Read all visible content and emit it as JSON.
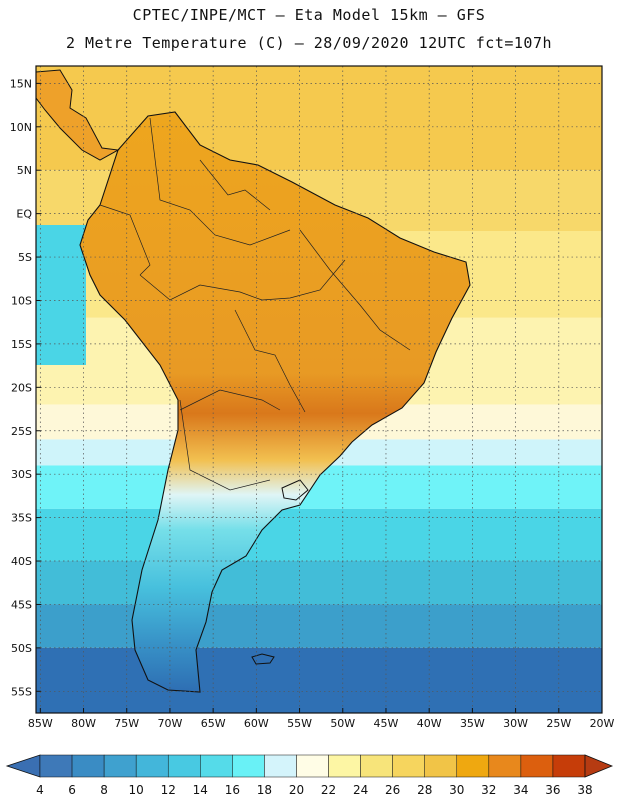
{
  "header": {
    "line1": "CPTEC/INPE/MCT –  Eta Model 15km – GFS",
    "line2": "2 Metre Temperature (C) – 28/09/2020 12UTC fct=107h"
  },
  "map": {
    "lat_range": [
      -57.5,
      17
    ],
    "lon_range": [
      -85.5,
      -20
    ],
    "lat_ticks": [
      "15N",
      "10N",
      "5N",
      "EQ",
      "5S",
      "10S",
      "15S",
      "20S",
      "25S",
      "30S",
      "35S",
      "40S",
      "45S",
      "50S",
      "55S"
    ],
    "lat_values": [
      15,
      10,
      5,
      0,
      -5,
      -10,
      -15,
      -20,
      -25,
      -30,
      -35,
      -40,
      -45,
      -50,
      -55
    ],
    "lon_ticks": [
      "85W",
      "80W",
      "75W",
      "70W",
      "65W",
      "60W",
      "55W",
      "50W",
      "45W",
      "40W",
      "35W",
      "30W",
      "25W",
      "20W"
    ],
    "lon_values": [
      -85,
      -80,
      -75,
      -70,
      -65,
      -60,
      -55,
      -50,
      -45,
      -40,
      -35,
      -30,
      -25,
      -20
    ],
    "gridlines": "dotted",
    "ocean_bands": [
      {
        "lat_from": 17,
        "lat_to": 5,
        "color": "#f5c94e",
        "value": 27
      },
      {
        "lat_from": 5,
        "lat_to": -2,
        "color": "#f7d86a",
        "value": 26
      },
      {
        "lat_from": -2,
        "lat_to": -12,
        "color": "#fbe88a",
        "value": 24
      },
      {
        "lat_from": -12,
        "lat_to": -22,
        "color": "#fdf3b0",
        "value": 23
      },
      {
        "lat_from": -22,
        "lat_to": -26,
        "color": "#fef8d8",
        "value": 21
      },
      {
        "lat_from": -26,
        "lat_to": -29,
        "color": "#cff4fa",
        "value": 19
      },
      {
        "lat_from": -29,
        "lat_to": -34,
        "color": "#6ff3f8",
        "value": 17
      },
      {
        "lat_from": -34,
        "lat_to": -40,
        "color": "#4ad5e6",
        "value": 15
      },
      {
        "lat_from": -40,
        "lat_to": -45,
        "color": "#42bdd8",
        "value": 13
      },
      {
        "lat_from": -45,
        "lat_to": -50,
        "color": "#3c9fcb",
        "value": 10
      },
      {
        "lat_from": -50,
        "lat_to": -57.5,
        "color": "#2f70b4",
        "value": 7
      }
    ],
    "pacific_warm_color": "#4ad5e6"
  },
  "colorbar": {
    "labels": [
      "4",
      "6",
      "8",
      "10",
      "12",
      "14",
      "16",
      "18",
      "20",
      "22",
      "24",
      "26",
      "28",
      "30",
      "32",
      "34",
      "36",
      "38"
    ],
    "colors": [
      "#3e79b8",
      "#3a8cc4",
      "#3fa1cf",
      "#43b6da",
      "#48c9e2",
      "#55dbe9",
      "#69f1f6",
      "#d4f4fb",
      "#fffde6",
      "#fdf6a4",
      "#f7e47a",
      "#f6d55e",
      "#f1c447",
      "#efa810",
      "#e8881c",
      "#dc5f0e",
      "#c63d09"
    ],
    "end_low_color": "#3a6fb2",
    "end_high_color": "#b63b12"
  }
}
